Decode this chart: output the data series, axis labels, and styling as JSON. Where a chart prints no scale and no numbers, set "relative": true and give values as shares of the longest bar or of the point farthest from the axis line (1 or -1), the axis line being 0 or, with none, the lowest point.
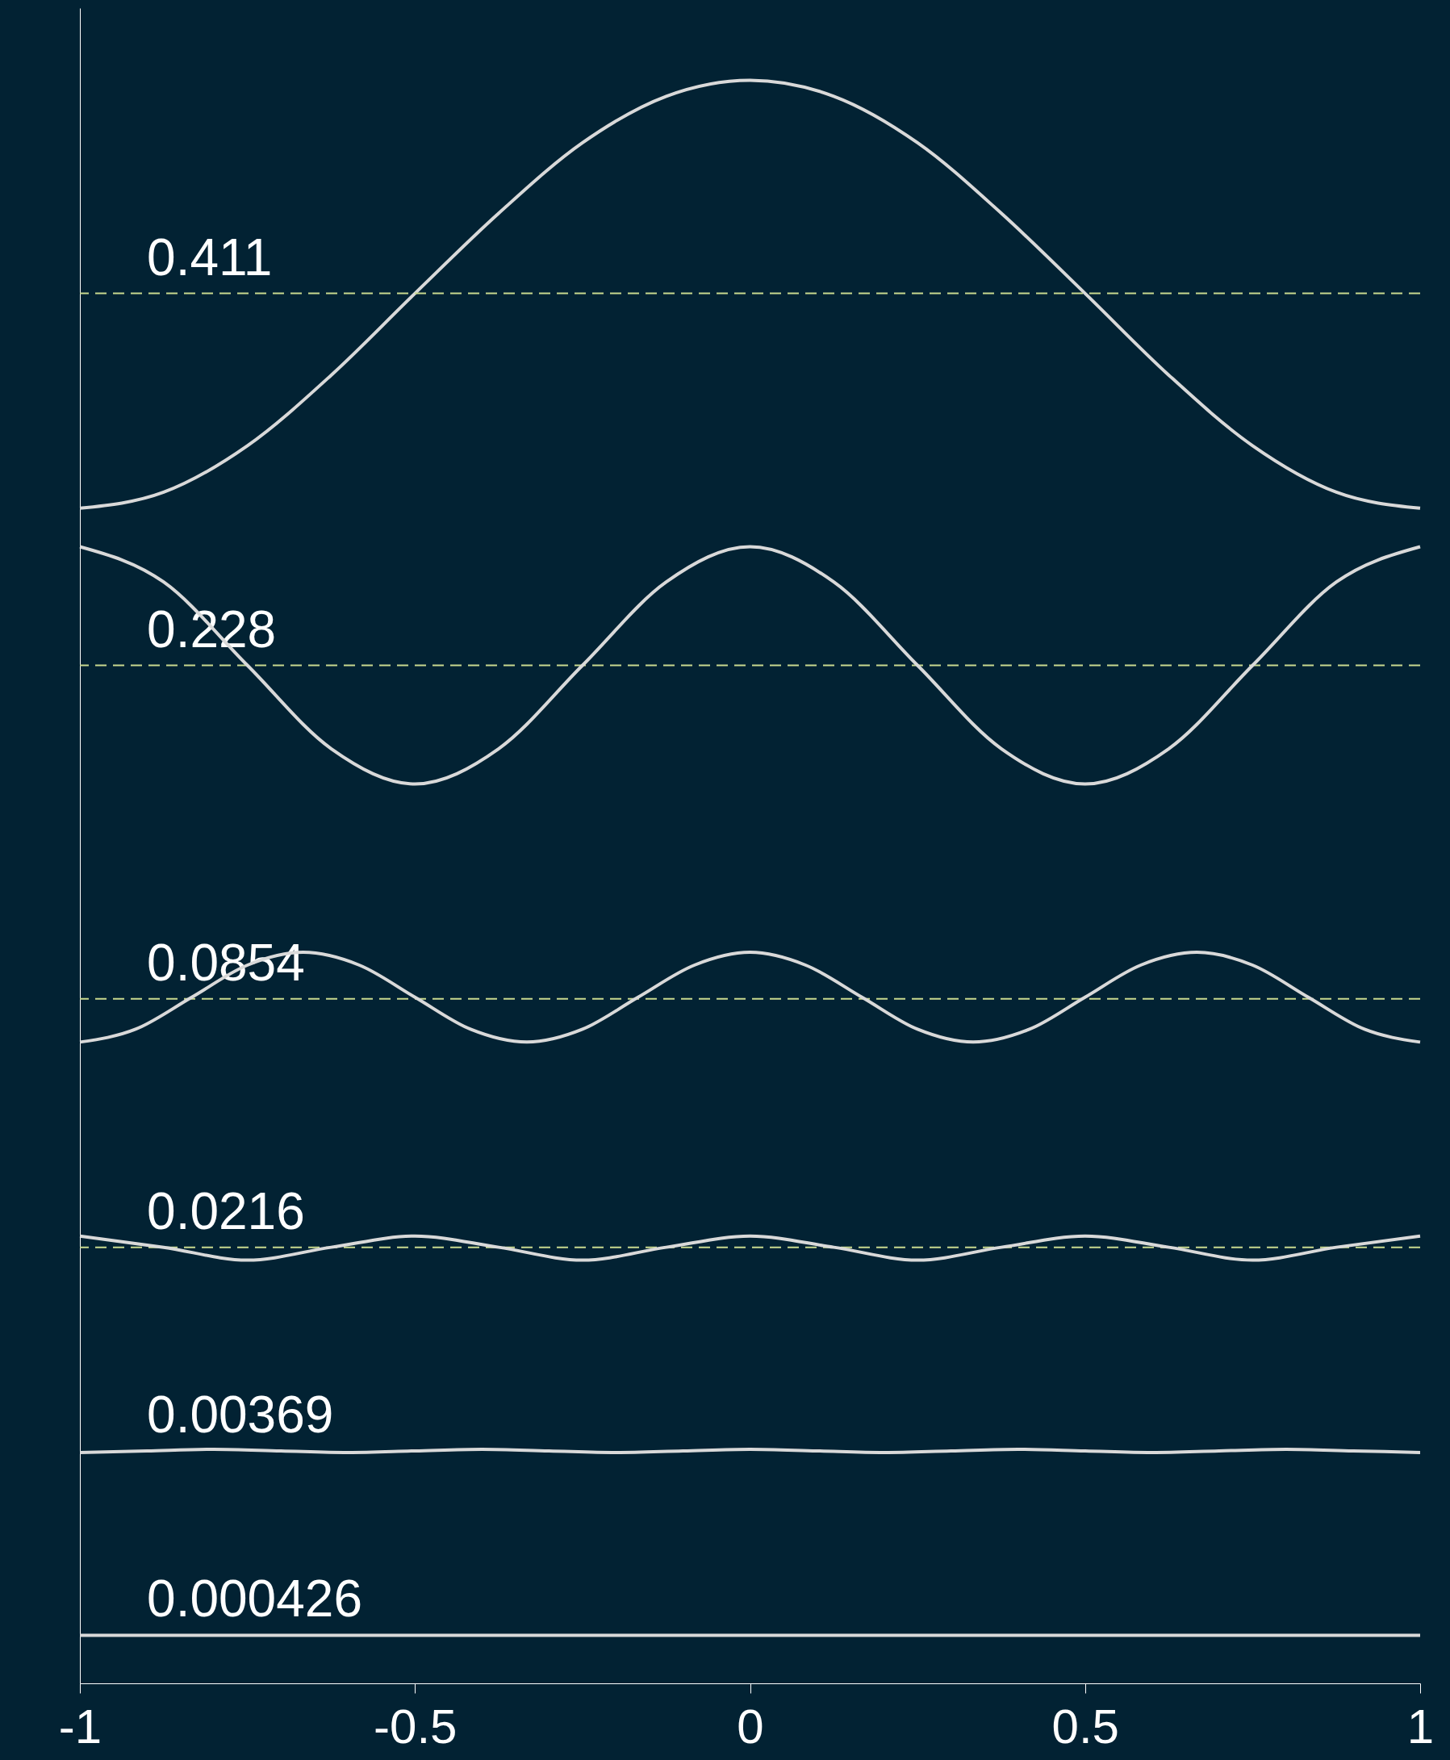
{
  "chart_data": {
    "type": "line",
    "relative": true,
    "xlim": [
      -1,
      1
    ],
    "xticks": [
      -1,
      -0.5,
      0,
      0.5,
      1
    ],
    "grid": false,
    "marker": "none",
    "line_style": "solid",
    "x": [
      -1,
      -0.875,
      -0.75,
      -0.625,
      -0.5,
      -0.375,
      -0.25,
      -0.125,
      0,
      0.125,
      0.25,
      0.375,
      0.5,
      0.625,
      0.75,
      0.875,
      1
    ],
    "series": [
      {
        "color": "#d9d9d9",
        "values": [
          0.733,
          0.743,
          0.772,
          0.816,
          0.867,
          0.917,
          0.961,
          0.99,
          1.0,
          0.99,
          0.961,
          0.917,
          0.867,
          0.816,
          0.772,
          0.743,
          0.733
        ]
      },
      {
        "color": "#d9d9d9",
        "values": [
          0.709,
          0.687,
          0.635,
          0.583,
          0.561,
          0.583,
          0.635,
          0.687,
          0.709,
          0.687,
          0.635,
          0.583,
          0.561,
          0.583,
          0.635,
          0.687,
          0.709
        ]
      },
      {
        "color": "#d9d9d9",
        "x": [
          -1,
          -0.917,
          -0.833,
          -0.75,
          -0.667,
          -0.583,
          -0.5,
          -0.417,
          -0.333,
          -0.25,
          -0.167,
          -0.083,
          0,
          0.083,
          0.167,
          0.25,
          0.333,
          0.417,
          0.5,
          0.583,
          0.667,
          0.75,
          0.833,
          0.917,
          1
        ],
        "values": [
          0.4,
          0.408,
          0.428,
          0.448,
          0.456,
          0.448,
          0.428,
          0.408,
          0.4,
          0.408,
          0.428,
          0.448,
          0.456,
          0.448,
          0.428,
          0.408,
          0.4,
          0.408,
          0.428,
          0.448,
          0.456,
          0.448,
          0.428,
          0.408,
          0.4
        ]
      },
      {
        "color": "#d9d9d9",
        "values": [
          0.279,
          0.272,
          0.264,
          0.272,
          0.279,
          0.272,
          0.264,
          0.272,
          0.279,
          0.272,
          0.264,
          0.272,
          0.279,
          0.272,
          0.264,
          0.272,
          0.279
        ]
      },
      {
        "color": "#d9d9d9",
        "x": [
          -1,
          -0.9,
          -0.8,
          -0.7,
          -0.6,
          -0.5,
          -0.4,
          -0.3,
          -0.2,
          -0.1,
          0,
          0.1,
          0.2,
          0.3,
          0.4,
          0.5,
          0.6,
          0.7,
          0.8,
          0.9,
          1
        ],
        "values": [
          0.144,
          0.145,
          0.146,
          0.145,
          0.144,
          0.145,
          0.146,
          0.145,
          0.144,
          0.145,
          0.146,
          0.145,
          0.144,
          0.145,
          0.146,
          0.145,
          0.144,
          0.145,
          0.146,
          0.145,
          0.144
        ]
      },
      {
        "color": "#d9d9d9",
        "x": [
          -1,
          0,
          1
        ],
        "values": [
          0.03,
          0.03,
          0.03
        ]
      }
    ],
    "ref_lines": [
      {
        "axis": "y",
        "value": 0.867,
        "color": "#c9d98f",
        "line_style": "dashed"
      },
      {
        "axis": "y",
        "value": 0.635,
        "color": "#c9d98f",
        "line_style": "dashed"
      },
      {
        "axis": "y",
        "value": 0.427,
        "color": "#c9d98f",
        "line_style": "dashed"
      },
      {
        "axis": "y",
        "value": 0.272,
        "color": "#c9d98f",
        "line_style": "dashed"
      }
    ],
    "annotations": [
      {
        "text": "0.411",
        "y": 0.867
      },
      {
        "text": "0.228",
        "y": 0.635
      },
      {
        "text": "0.0854",
        "y": 0.427
      },
      {
        "text": "0.0216",
        "y": 0.272
      },
      {
        "text": "0.00369",
        "y": 0.145
      },
      {
        "text": "0.000426",
        "y": 0.03
      }
    ]
  }
}
